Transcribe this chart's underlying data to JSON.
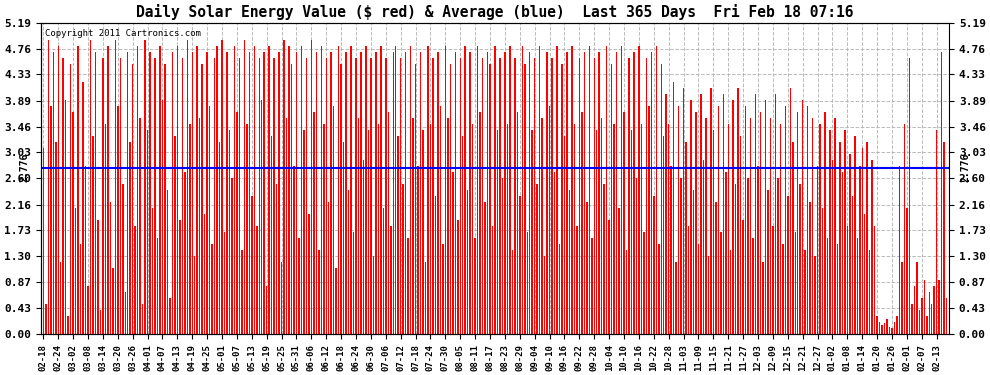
{
  "title": "Daily Solar Energy Value ($ red) & Average (blue)  Last 365 Days  Fri Feb 18 07:16",
  "copyright": "Copyright 2011 Cartronics.com",
  "average": 2.776,
  "bar_color": "#ff0000",
  "avg_line_color": "#0000ff",
  "background_color": "#ffffff",
  "yticks": [
    0.0,
    0.43,
    0.87,
    1.3,
    1.73,
    2.16,
    2.6,
    3.03,
    3.46,
    3.89,
    4.33,
    4.76,
    5.19
  ],
  "ylim": [
    0.0,
    5.19
  ],
  "grid_color": "#aaaaaa",
  "avg_label": "2.776",
  "x_labels": [
    "02-18",
    "02-24",
    "03-02",
    "03-08",
    "03-14",
    "03-20",
    "03-26",
    "04-01",
    "04-07",
    "04-13",
    "04-19",
    "04-25",
    "05-01",
    "05-07",
    "05-13",
    "05-19",
    "05-25",
    "05-31",
    "06-06",
    "06-12",
    "06-18",
    "06-24",
    "06-30",
    "07-06",
    "07-12",
    "07-18",
    "07-24",
    "07-30",
    "08-05",
    "08-11",
    "08-17",
    "08-23",
    "08-29",
    "09-04",
    "09-10",
    "09-16",
    "09-22",
    "09-28",
    "10-04",
    "10-10",
    "10-16",
    "10-22",
    "10-28",
    "11-03",
    "11-09",
    "11-15",
    "11-21",
    "11-27",
    "12-03",
    "12-09",
    "12-15",
    "12-21",
    "12-27",
    "01-02",
    "01-08",
    "01-14",
    "01-20",
    "01-26",
    "02-01",
    "02-07",
    "02-13"
  ],
  "bar_values": [
    3.1,
    0.5,
    4.9,
    3.8,
    4.7,
    3.2,
    4.8,
    1.2,
    4.6,
    3.9,
    0.3,
    4.5,
    3.7,
    2.1,
    4.8,
    1.5,
    4.2,
    2.8,
    0.8,
    4.9,
    3.3,
    4.7,
    1.9,
    0.4,
    4.6,
    3.5,
    4.8,
    2.2,
    1.1,
    4.9,
    3.8,
    4.6,
    2.5,
    0.7,
    4.7,
    3.2,
    4.5,
    1.8,
    4.8,
    3.6,
    0.5,
    4.9,
    3.4,
    4.7,
    2.1,
    4.6,
    1.6,
    4.8,
    3.9,
    4.5,
    2.4,
    0.6,
    4.7,
    3.3,
    4.8,
    1.9,
    4.6,
    2.7,
    4.9,
    3.5,
    4.7,
    1.3,
    4.8,
    3.6,
    4.5,
    2.0,
    4.7,
    3.8,
    1.5,
    4.6,
    4.8,
    3.2,
    4.9,
    1.7,
    4.7,
    3.4,
    2.6,
    4.8,
    3.7,
    4.6,
    1.4,
    4.9,
    3.5,
    4.7,
    2.3,
    4.8,
    1.8,
    4.6,
    3.9,
    4.7,
    0.8,
    4.8,
    3.3,
    4.6,
    2.5,
    4.7,
    1.2,
    4.9,
    3.6,
    4.8,
    4.5,
    2.8,
    4.7,
    1.6,
    4.8,
    3.4,
    4.6,
    2.0,
    4.9,
    3.7,
    4.7,
    1.4,
    4.8,
    3.5,
    4.6,
    2.2,
    4.7,
    3.8,
    1.1,
    4.8,
    4.5,
    3.2,
    4.7,
    2.4,
    4.8,
    1.7,
    4.6,
    3.6,
    4.7,
    2.9,
    4.8,
    3.4,
    4.6,
    1.3,
    4.7,
    3.5,
    4.8,
    2.1,
    4.6,
    3.7,
    1.8,
    4.7,
    4.8,
    3.3,
    4.6,
    2.5,
    4.7,
    1.6,
    4.8,
    3.6,
    4.5,
    2.8,
    4.7,
    3.4,
    1.2,
    4.8,
    3.5,
    4.6,
    2.3,
    4.7,
    3.8,
    1.5,
    4.8,
    3.6,
    4.5,
    2.7,
    4.7,
    1.9,
    4.6,
    3.3,
    4.8,
    2.4,
    4.7,
    3.5,
    1.6,
    4.8,
    3.7,
    4.6,
    2.2,
    4.7,
    4.5,
    1.8,
    4.8,
    3.4,
    4.6,
    2.6,
    4.7,
    3.5,
    4.8,
    1.4,
    4.6,
    3.7,
    2.3,
    4.8,
    4.5,
    1.7,
    4.7,
    3.4,
    4.6,
    2.5,
    4.8,
    3.6,
    1.3,
    4.7,
    3.8,
    4.6,
    2.7,
    4.8,
    1.5,
    4.5,
    3.3,
    4.7,
    2.4,
    4.8,
    3.5,
    1.8,
    4.6,
    3.7,
    4.7,
    2.2,
    4.8,
    1.6,
    4.6,
    3.4,
    4.7,
    3.6,
    2.5,
    4.8,
    1.9,
    4.5,
    3.5,
    4.7,
    2.1,
    4.8,
    3.7,
    1.4,
    4.6,
    3.4,
    4.7,
    2.6,
    4.8,
    3.5,
    1.7,
    4.6,
    3.8,
    4.7,
    2.3,
    4.8,
    1.5,
    4.5,
    3.3,
    4.0,
    3.5,
    2.8,
    4.2,
    1.2,
    3.8,
    2.6,
    4.1,
    3.2,
    1.8,
    3.9,
    2.4,
    3.7,
    1.5,
    4.0,
    2.9,
    3.6,
    1.3,
    4.1,
    3.4,
    2.2,
    3.8,
    1.7,
    4.0,
    2.7,
    3.5,
    1.4,
    3.9,
    2.5,
    4.1,
    3.3,
    1.9,
    3.8,
    2.6,
    3.6,
    1.6,
    4.0,
    2.8,
    3.7,
    1.2,
    3.9,
    2.4,
    3.6,
    1.8,
    4.0,
    2.6,
    3.5,
    1.5,
    3.8,
    2.3,
    4.1,
    3.2,
    1.7,
    3.7,
    2.5,
    3.9,
    1.4,
    3.8,
    2.2,
    3.6,
    1.3,
    2.8,
    3.5,
    2.1,
    3.7,
    1.6,
    3.4,
    2.9,
    3.6,
    1.5,
    3.2,
    2.7,
    3.4,
    1.8,
    3.0,
    2.3,
    3.3,
    1.6,
    2.8,
    3.1,
    2.0,
    3.2,
    1.4,
    2.9,
    1.8,
    0.3,
    0.2,
    0.15,
    0.18,
    0.25,
    0.12,
    0.1,
    0.2,
    0.3,
    2.8,
    1.2,
    3.5,
    2.1,
    4.6,
    0.5,
    0.8,
    1.2,
    0.4,
    0.6,
    0.9,
    0.3,
    0.7,
    0.5,
    0.8,
    3.4,
    0.9,
    4.7,
    3.2,
    0.6
  ]
}
